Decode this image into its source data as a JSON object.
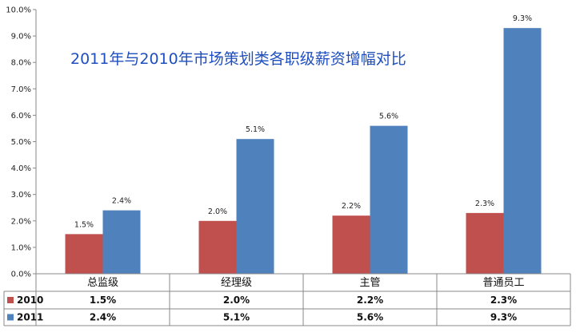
{
  "chart_data": {
    "type": "bar",
    "title": "2011年与2010年市场策划类各职级薪资增幅对比",
    "categories": [
      "总监级",
      "经理级",
      "主管",
      "普通员工"
    ],
    "series": [
      {
        "name": "2010",
        "color": "#c0504d",
        "values": [
          1.5,
          2.0,
          2.2,
          2.3
        ],
        "labels": [
          "1.5%",
          "2.0%",
          "2.2%",
          "2.3%"
        ]
      },
      {
        "name": "2011",
        "color": "#4f81bd",
        "values": [
          2.4,
          5.1,
          5.6,
          9.3
        ],
        "labels": [
          "2.4%",
          "5.1%",
          "5.6%",
          "9.3%"
        ]
      }
    ],
    "ylim": [
      0,
      10
    ],
    "yticks": [
      "0.0%",
      "1.0%",
      "2.0%",
      "3.0%",
      "4.0%",
      "5.0%",
      "6.0%",
      "7.0%",
      "8.0%",
      "9.0%",
      "10.0%"
    ],
    "xlabel": "",
    "ylabel": "",
    "grid": false,
    "legend": "data-table"
  }
}
